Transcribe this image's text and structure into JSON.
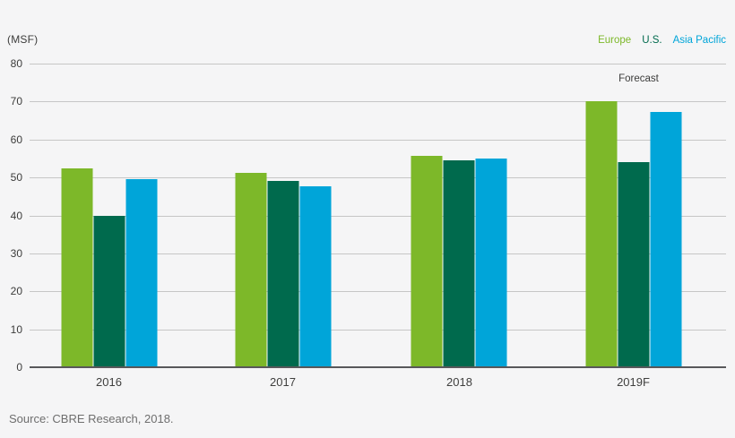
{
  "header": {
    "unit_label": "(MSF)"
  },
  "legend": {
    "position": "top-right",
    "items": [
      {
        "label": "Europe",
        "color": "#7db829"
      },
      {
        "label": "U.S.",
        "color": "#006a4d"
      },
      {
        "label": "Asia Pacific",
        "color": "#00a5d9"
      }
    ]
  },
  "source_note": "Source: CBRE Research, 2018.",
  "chart_data": {
    "type": "bar",
    "title": "",
    "unit_label": "(MSF)",
    "categories": [
      "2016",
      "2017",
      "2018",
      "2019F"
    ],
    "series": [
      {
        "name": "Europe",
        "color": "#7db829",
        "values": [
          52.3,
          51.2,
          55.8,
          70.0
        ]
      },
      {
        "name": "U.S.",
        "color": "#006a4d",
        "values": [
          40.0,
          49.2,
          54.6,
          54.0
        ]
      },
      {
        "name": "Asia Pacific",
        "color": "#00a5d9",
        "values": [
          49.6,
          47.6,
          55.1,
          67.3
        ]
      }
    ],
    "ylim": [
      0,
      80
    ],
    "yticks": [
      0,
      10,
      20,
      30,
      40,
      50,
      60,
      70,
      80
    ],
    "grid": true,
    "gridline_color": "#c6c6c6",
    "axis_line_color": "#58585a",
    "background_color": "#f5f5f6",
    "legend_position": "top-right",
    "annotations": [
      {
        "text": "Forecast",
        "category": "2019F"
      }
    ],
    "group_centers_pct": [
      11.39,
      36.36,
      61.71,
      86.68
    ]
  }
}
